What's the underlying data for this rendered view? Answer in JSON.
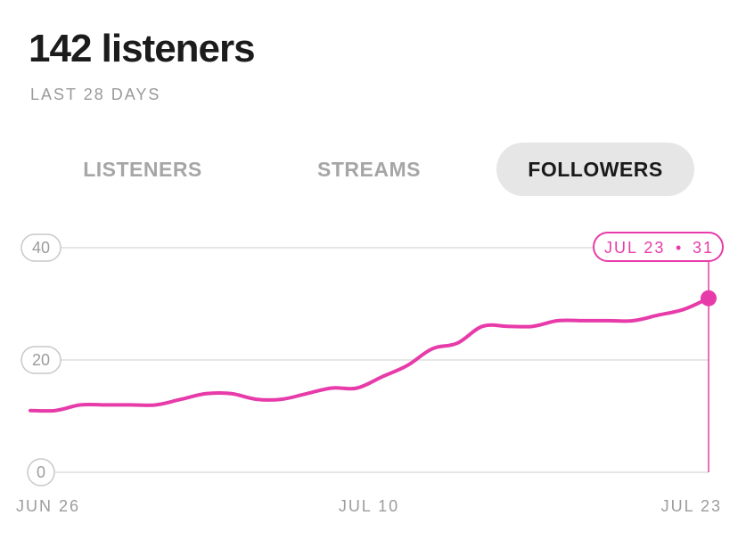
{
  "header": {
    "title": "142 listeners",
    "period": "LAST 28 DAYS"
  },
  "tabs": [
    {
      "label": "LISTENERS",
      "active": false
    },
    {
      "label": "STREAMS",
      "active": false
    },
    {
      "label": "FOLLOWERS",
      "active": true
    }
  ],
  "colors": {
    "accent": "#e73ba9",
    "grid": "#dedede",
    "muted": "#9c9c9c"
  },
  "chart_data": {
    "type": "line",
    "ylim": [
      0,
      40
    ],
    "yticks": [
      "0",
      "20",
      "40"
    ],
    "xticks": [
      "JUN 26",
      "JUL 10",
      "JUL 23"
    ],
    "grid": true,
    "series": [
      {
        "x": [
          "Jun 26",
          "Jun 27",
          "Jun 28",
          "Jun 29",
          "Jun 30",
          "Jul 1",
          "Jul 2",
          "Jul 3",
          "Jul 4",
          "Jul 5",
          "Jul 6",
          "Jul 7",
          "Jul 8",
          "Jul 9",
          "Jul 10",
          "Jul 11",
          "Jul 12",
          "Jul 13",
          "Jul 14",
          "Jul 15",
          "Jul 16",
          "Jul 17",
          "Jul 18",
          "Jul 19",
          "Jul 20",
          "Jul 21",
          "Jul 22",
          "Jul 23"
        ],
        "values": [
          11,
          11,
          12,
          12,
          12,
          12,
          13,
          14,
          14,
          13,
          13,
          14,
          15,
          15,
          17,
          19,
          22,
          23,
          26,
          26,
          26,
          27,
          27,
          27,
          27,
          28,
          29,
          31
        ]
      }
    ],
    "annotation": {
      "date": "JUL 23",
      "value": "31",
      "separator": "•"
    }
  }
}
